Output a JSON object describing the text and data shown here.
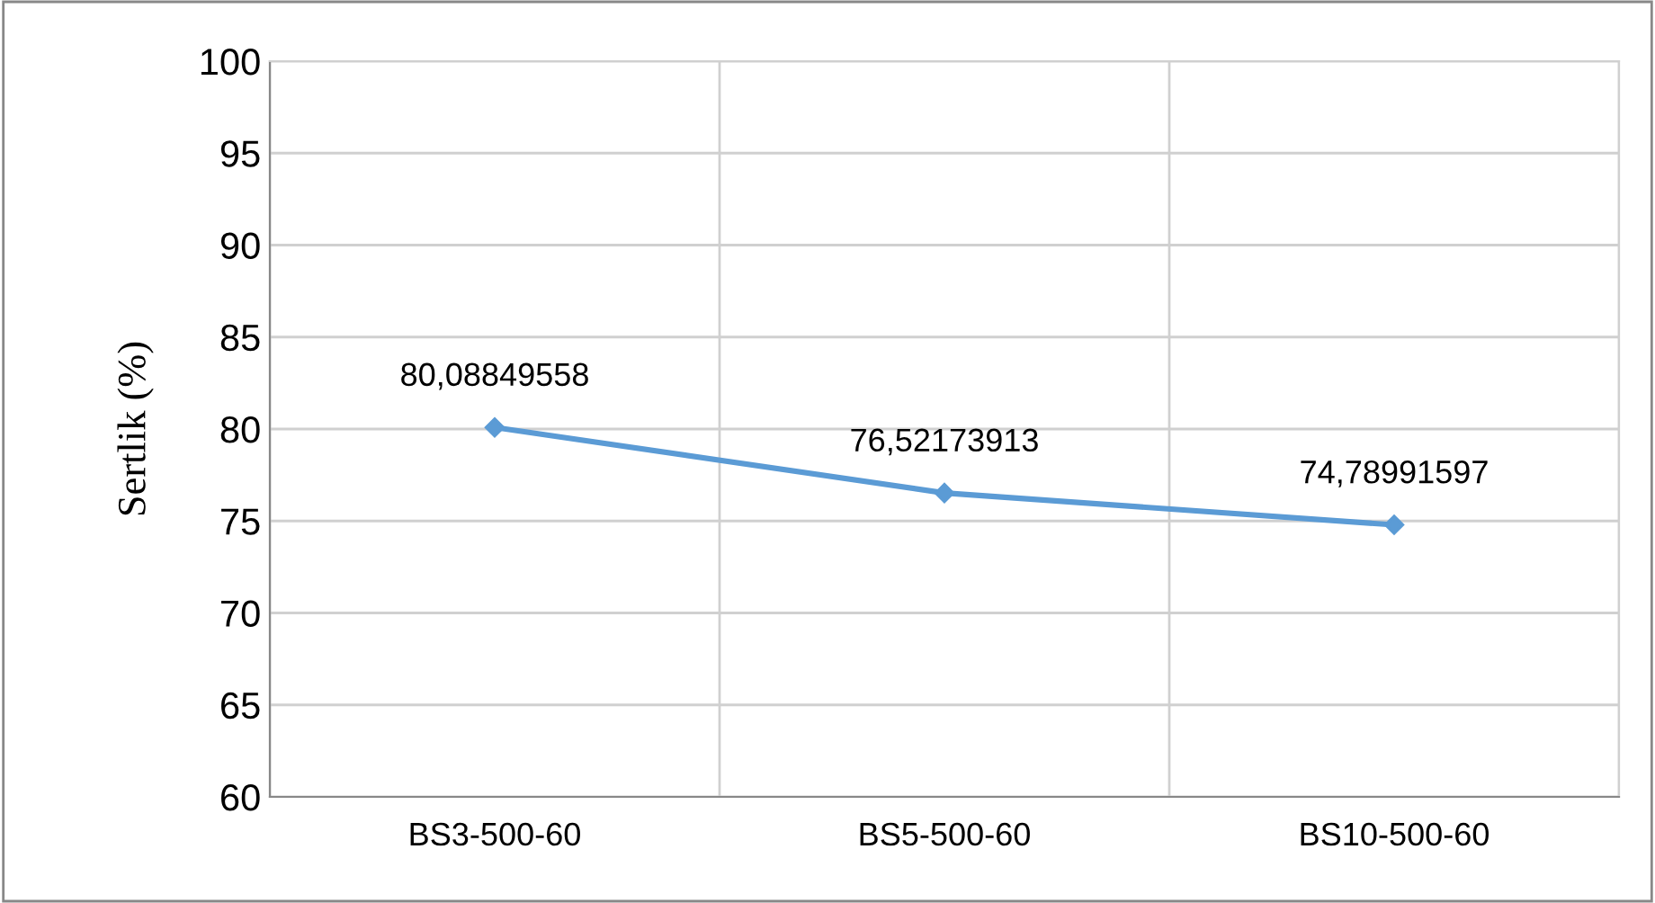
{
  "chart_data": {
    "type": "line",
    "ylabel": "Sertlik (%)",
    "categories": [
      "BS3-500-60",
      "BS5-500-60",
      "BS10-500-60"
    ],
    "series": [
      {
        "color": "#5b9bd5",
        "values": [
          80.08849558,
          76.52173913,
          74.78991597
        ],
        "value_labels": [
          "80,08849558",
          "76,52173913",
          "74,78991597"
        ]
      }
    ],
    "ylim": [
      60,
      100
    ],
    "yticks": [
      60,
      65,
      70,
      75,
      80,
      85,
      90,
      95,
      100
    ],
    "grid": true,
    "marker": "diamond",
    "legend": false
  }
}
